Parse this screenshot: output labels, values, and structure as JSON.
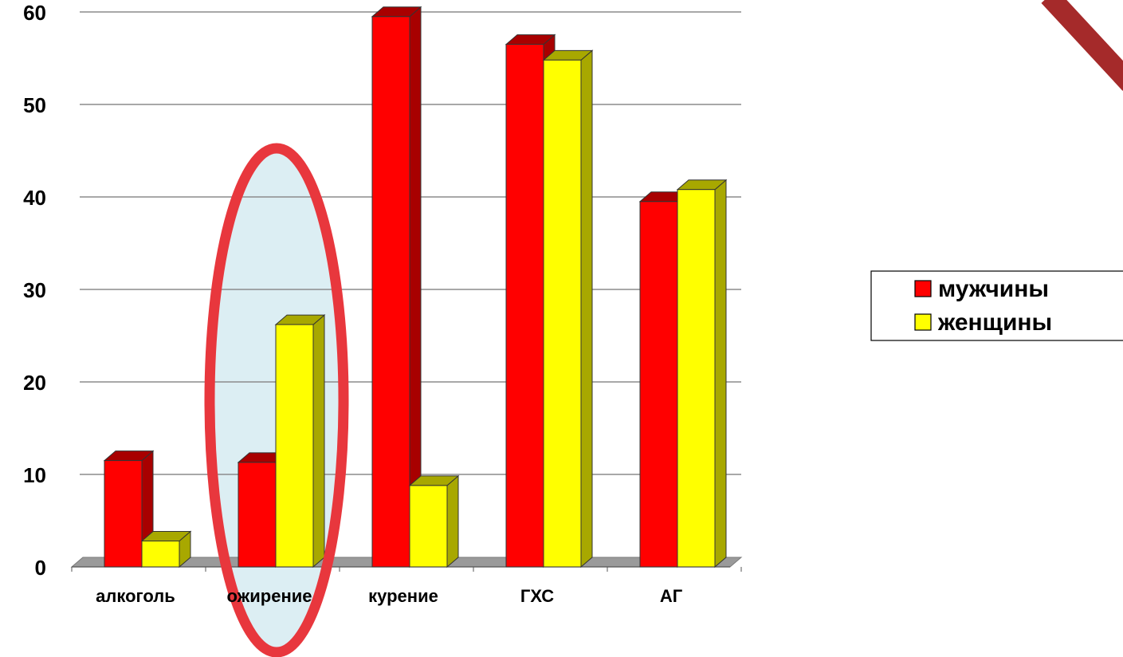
{
  "chart_data": {
    "type": "bar",
    "title": "",
    "xlabel": "",
    "ylabel": "",
    "categories": [
      "алкоголь",
      "ожирение",
      "курение",
      "ГХС",
      "АГ"
    ],
    "series": [
      {
        "name": "мужчины",
        "values": [
          11.5,
          11.3,
          59.5,
          56.5,
          39.5
        ],
        "color": "#ff0000",
        "side_color": "#a80000"
      },
      {
        "name": "женщины",
        "values": [
          2.8,
          26.2,
          8.8,
          54.8,
          40.8
        ],
        "color": "#ffff00",
        "side_color": "#a8a800"
      }
    ],
    "ylim": [
      0,
      60
    ],
    "yticks": [
      "0",
      "10",
      "20",
      "30",
      "40",
      "50",
      "60"
    ],
    "grid": true,
    "legend_position": "right",
    "highlight": {
      "category": "ожирение",
      "shape": "ellipse",
      "stroke": "#e8373d",
      "fill": "#dceef3"
    },
    "corner_decoration_color": "#a52a2a"
  }
}
